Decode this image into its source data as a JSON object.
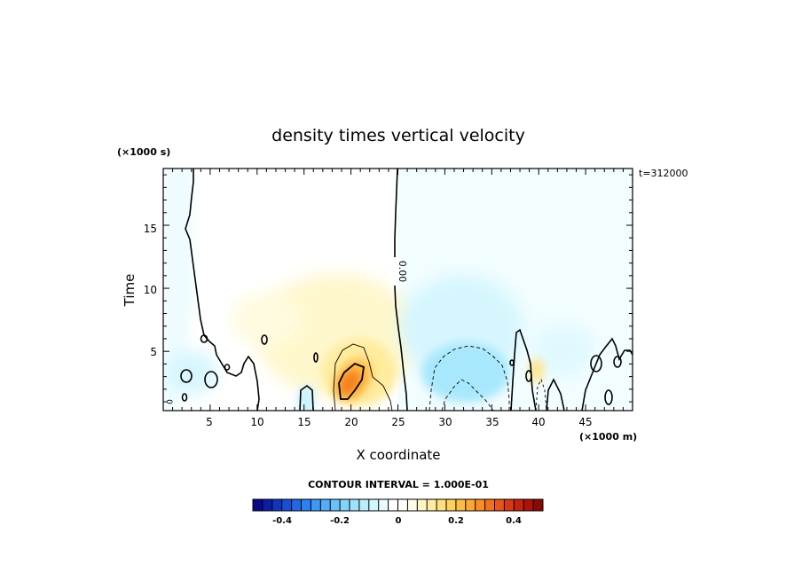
{
  "chart_data": {
    "type": "heatmap",
    "title": "density times vertical velocity",
    "xlabel": "X coordinate",
    "ylabel": "Time",
    "x_unit": "(×1000 m)",
    "y_unit": "(×1000 s)",
    "annotation": "t=312000",
    "xlim": [
      0,
      50
    ],
    "ylim": [
      0.3,
      19.5
    ],
    "x_ticks": [
      "5",
      "10",
      "15",
      "20",
      "25",
      "30",
      "35",
      "40",
      "45"
    ],
    "y_ticks": [
      "5",
      "10",
      "15"
    ],
    "contour_labels": [
      "0.00",
      "0"
    ],
    "contour_interval": "CONTOUR INTERVAL = 1.000E-01",
    "colorbar": {
      "min": -0.5,
      "max": 0.5,
      "ticks": [
        "-0.4",
        "-0.2",
        "0",
        "0.2",
        "0.4"
      ],
      "colors": [
        "#08088c",
        "#0a1ea8",
        "#0f35c2",
        "#1750d8",
        "#2068e8",
        "#2c80f0",
        "#3c98f5",
        "#50aef8",
        "#68c2fa",
        "#80d4fb",
        "#9ce2fc",
        "#b8eefd",
        "#d2f6fe",
        "#e8fbff",
        "#ffffff",
        "#ffffff",
        "#fffce6",
        "#fff6c4",
        "#ffeca0",
        "#ffe07c",
        "#ffd05e",
        "#ffbc44",
        "#ffa632",
        "#fb8c24",
        "#f4701a",
        "#ea5414",
        "#dc3810",
        "#c8220c",
        "#ac1208",
        "#8c0804"
      ]
    },
    "features": [
      {
        "kind": "positive",
        "peak": 0.35,
        "x": 20,
        "y": 2.5
      },
      {
        "kind": "positive",
        "peak": 0.1,
        "x": 18,
        "y": 7
      },
      {
        "kind": "negative",
        "peak": -0.15,
        "x": 31,
        "y": 3.5
      },
      {
        "kind": "negative",
        "peak": -0.05,
        "x": 31,
        "y": 8
      },
      {
        "kind": "positive",
        "peak": 0.12,
        "x": 38.5,
        "y": 3
      }
    ]
  }
}
